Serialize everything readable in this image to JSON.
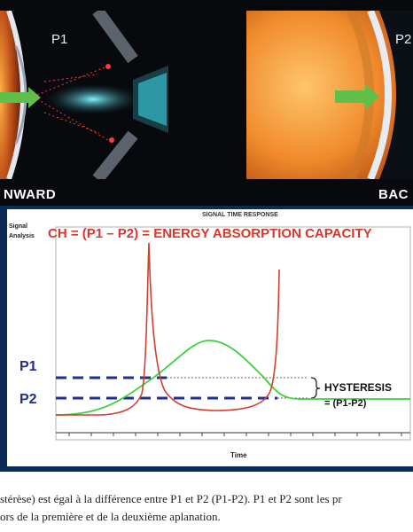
{
  "top": {
    "left_point_label": "P1",
    "right_point_label": "P2",
    "left_direction_label": "NWARD",
    "right_direction_label": "BAC"
  },
  "chart": {
    "header": "SIGNAL TIME RESPONSE",
    "signal_label_line1": "Signal",
    "signal_label_line2": "Analysis",
    "formula": "CH = (P1 – P2) = ENERGY ABSORPTION CAPACITY",
    "p1_label": "P1",
    "p2_label": "P2",
    "hysteresis_line1": "HYSTERESIS",
    "hysteresis_line2": "= (P1-P2)",
    "time_label": "Time",
    "colors": {
      "formula": "#d9372b",
      "pressure_curve": "#cf4030",
      "applanation_curve": "#3fcf3f",
      "dashed_lines": "#1f2f8f"
    }
  },
  "caption": {
    "line1": "stérèse) est égal à la différence entre P1 et P2 (P1-P2). P1 et P2 sont les pr",
    "line2": "ors de la première et de la deuxième aplanation."
  }
}
